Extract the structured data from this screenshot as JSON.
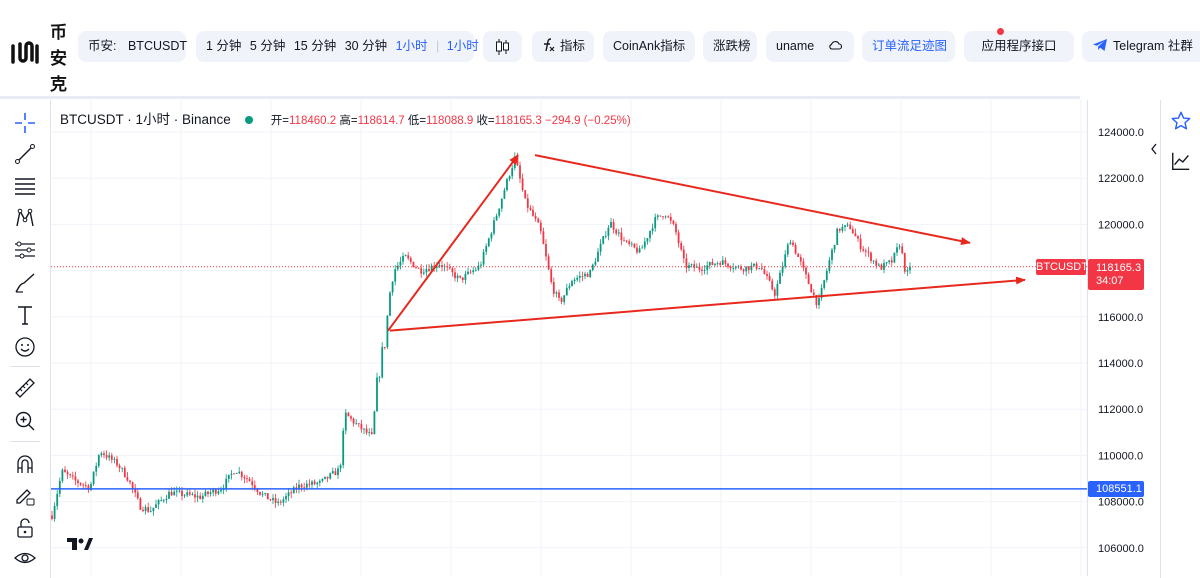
{
  "app": {
    "logo_text": [
      "币",
      "安",
      "克"
    ]
  },
  "toolbar": {
    "symbol_prefix": "币安:",
    "symbol": "BTCUSDT",
    "timeframes": [
      "1 分钟",
      "5 分钟",
      "15 分钟",
      "30 分钟",
      "1小时"
    ],
    "timeframe_dropdown": "1小时",
    "indicators_label": "指标",
    "coinank_label": "CoinAnk指标",
    "movers_label": "涨跌榜",
    "user_label": "uname",
    "orderflow_label": "订单流足迹图",
    "api_label": "应用程序接口",
    "telegram_label": "Telegram 社群"
  },
  "legend": {
    "title": "BTCUSDT · 1小时 · Binance",
    "open_label": "开=",
    "open": "118460.2",
    "high_label": "高=",
    "high": "118614.7",
    "low_label": "低=",
    "low": "118088.9",
    "close_label": "收=",
    "close": "118165.3",
    "change": "−294.9 (−0.25%)"
  },
  "price_axis": {
    "ticks": [
      "124000.0",
      "122000.0",
      "120000.0",
      "118000.0",
      "116000.0",
      "114000.0",
      "112000.0",
      "110000.0",
      "108000.0",
      "106000.0"
    ],
    "current_price": "118165.3",
    "countdown": "34:07",
    "symbol_tag": "BTCUSDT",
    "hline_price": "108551.1"
  },
  "colors": {
    "up": "#089981",
    "down": "#f23645",
    "accent": "#2962ff",
    "annotation": "#e8281d"
  },
  "chart_data": {
    "type": "candlestick",
    "symbol": "BTCUSDT",
    "interval": "1小时",
    "exchange": "Binance",
    "ylim": [
      105000,
      125000
    ],
    "last_price": 118165.3,
    "horizontal_line": 108551.1,
    "trend_lines": [
      {
        "points": [
          [
            388,
            115400
          ],
          [
            518,
            123000
          ]
        ]
      },
      {
        "points": [
          [
            535,
            123000
          ],
          [
            970,
            119200
          ]
        ]
      },
      {
        "points": [
          [
            390,
            115400
          ],
          [
            1025,
            117600
          ]
        ]
      }
    ],
    "candle_path": [
      [
        52,
        107400
      ],
      [
        62,
        109300
      ],
      [
        75,
        108900
      ],
      [
        90,
        108600
      ],
      [
        100,
        110200
      ],
      [
        118,
        109600
      ],
      [
        128,
        109000
      ],
      [
        140,
        107800
      ],
      [
        150,
        107600
      ],
      [
        170,
        108400
      ],
      [
        200,
        108200
      ],
      [
        222,
        108600
      ],
      [
        235,
        109400
      ],
      [
        250,
        108900
      ],
      [
        262,
        108300
      ],
      [
        278,
        107900
      ],
      [
        300,
        108700
      ],
      [
        320,
        108800
      ],
      [
        340,
        109400
      ],
      [
        345,
        111800
      ],
      [
        360,
        111200
      ],
      [
        372,
        110800
      ],
      [
        378,
        113400
      ],
      [
        385,
        115000
      ],
      [
        392,
        117900
      ],
      [
        405,
        118600
      ],
      [
        420,
        118000
      ],
      [
        440,
        118300
      ],
      [
        460,
        117600
      ],
      [
        480,
        118200
      ],
      [
        495,
        120200
      ],
      [
        505,
        121600
      ],
      [
        515,
        122900
      ],
      [
        525,
        121000
      ],
      [
        540,
        119800
      ],
      [
        552,
        117300
      ],
      [
        560,
        116600
      ],
      [
        572,
        117600
      ],
      [
        590,
        117900
      ],
      [
        610,
        120100
      ],
      [
        625,
        119200
      ],
      [
        640,
        118800
      ],
      [
        655,
        120200
      ],
      [
        665,
        120500
      ],
      [
        675,
        119800
      ],
      [
        685,
        118200
      ],
      [
        700,
        118100
      ],
      [
        720,
        118400
      ],
      [
        740,
        118100
      ],
      [
        760,
        118200
      ],
      [
        775,
        117000
      ],
      [
        790,
        119400
      ],
      [
        800,
        118400
      ],
      [
        810,
        117300
      ],
      [
        818,
        116500
      ],
      [
        828,
        118200
      ],
      [
        838,
        119800
      ],
      [
        850,
        119900
      ],
      [
        860,
        119100
      ],
      [
        870,
        118600
      ],
      [
        880,
        118100
      ],
      [
        892,
        118400
      ],
      [
        900,
        119200
      ],
      [
        906,
        117800
      ],
      [
        912,
        118165
      ]
    ]
  }
}
